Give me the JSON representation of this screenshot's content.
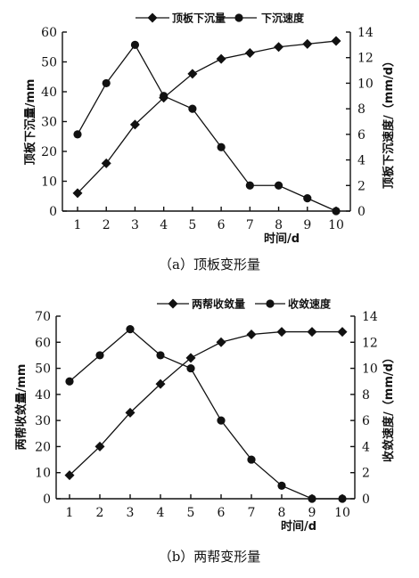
{
  "chart_data": [
    {
      "type": "line",
      "caption": "（a）顶板变形量",
      "x": [
        1,
        2,
        3,
        4,
        5,
        6,
        7,
        8,
        9,
        10
      ],
      "x_ticks": [
        "1",
        "2",
        "3",
        "4",
        "5",
        "6",
        "7",
        "8",
        "9",
        "10"
      ],
      "xlabel": "时间/d",
      "ylabel_left": "顶板下沉量/mm",
      "ylabel_right": "顶板下沉速度/（mm/d）",
      "ylim_left": [
        0,
        60
      ],
      "ylim_right": [
        0,
        14
      ],
      "yticks_left": [
        "0",
        "10",
        "20",
        "30",
        "40",
        "50",
        "60"
      ],
      "yticks_right": [
        "0",
        "2",
        "4",
        "6",
        "8",
        "10",
        "12",
        "14"
      ],
      "legend_position": "top",
      "grid": false,
      "series": [
        {
          "name": "顶板下沉量",
          "axis": "left",
          "marker": "diamond",
          "values": [
            6,
            16,
            29,
            38,
            46,
            51,
            53,
            55,
            56,
            57
          ]
        },
        {
          "name": "下沉速度",
          "axis": "right",
          "marker": "circle",
          "values": [
            6,
            10,
            13,
            9,
            8,
            5,
            2,
            2,
            1,
            0
          ]
        }
      ]
    },
    {
      "type": "line",
      "caption": "（b）两帮变形量",
      "x": [
        1,
        2,
        3,
        4,
        5,
        6,
        7,
        8,
        9,
        10
      ],
      "x_ticks": [
        "1",
        "2",
        "3",
        "4",
        "5",
        "6",
        "7",
        "8",
        "9",
        "10"
      ],
      "xlabel": "时间/d",
      "ylabel_left": "两帮收敛量/mm",
      "ylabel_right": "收敛速度/（mm/d）",
      "ylim_left": [
        0,
        70
      ],
      "ylim_right": [
        0,
        14
      ],
      "yticks_left": [
        "0",
        "10",
        "20",
        "30",
        "40",
        "50",
        "60",
        "70"
      ],
      "yticks_right": [
        "0",
        "2",
        "4",
        "6",
        "8",
        "10",
        "12",
        "14"
      ],
      "legend_position": "top",
      "grid": false,
      "series": [
        {
          "name": "两帮收敛量",
          "axis": "left",
          "marker": "diamond",
          "values": [
            9,
            20,
            33,
            44,
            54,
            60,
            63,
            64,
            64,
            64
          ]
        },
        {
          "name": "收敛速度",
          "axis": "right",
          "marker": "circle",
          "values": [
            9,
            11,
            13,
            11,
            10,
            6,
            3,
            1,
            0,
            0
          ]
        }
      ]
    }
  ]
}
